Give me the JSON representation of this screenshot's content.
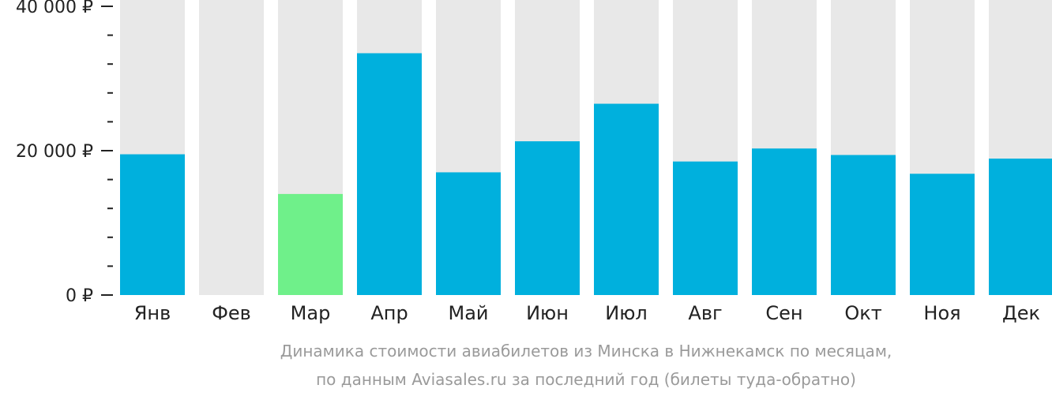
{
  "chart_data": {
    "type": "bar",
    "categories": [
      "Янв",
      "Фев",
      "Мар",
      "Апр",
      "Май",
      "Июн",
      "Июл",
      "Авг",
      "Сен",
      "Окт",
      "Ноя",
      "Дек"
    ],
    "values": [
      19500,
      null,
      14000,
      33500,
      17000,
      21300,
      26500,
      18500,
      20300,
      19400,
      16800,
      18900
    ],
    "highlight_index": 2,
    "ylim": [
      0,
      40000
    ],
    "ytick_values": [
      0,
      20000,
      40000
    ],
    "ytick_labels": [
      "0 ₽",
      "20 000 ₽",
      "40 000 ₽"
    ],
    "minor_ticks_per_major": 5,
    "grid": false,
    "legend": "none",
    "caption_lines": [
      "Динамика стоимости авиабилетов из Минска в Нижнекамск по месяцам,",
      "по данным Aviasales.ru за последний год (билеты туда-обратно)"
    ],
    "colors": {
      "bar": "#00b0dd",
      "highlight": "#6ff08a",
      "background_bar": "#e8e8e8",
      "axis": "#222222",
      "caption": "#9a9a9a"
    }
  }
}
